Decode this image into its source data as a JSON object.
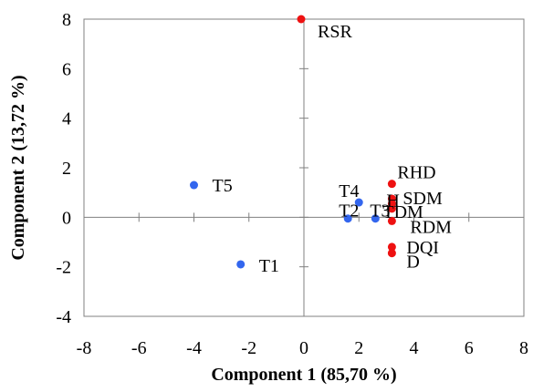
{
  "chart_data": {
    "type": "scatter",
    "xlabel": "Component 1 (85,70 %)",
    "ylabel": "Component  2 (13,72 %)",
    "xlim": [
      -8,
      8
    ],
    "ylim": [
      -4,
      8
    ],
    "xticks": [
      -8,
      -6,
      -4,
      -2,
      0,
      2,
      4,
      6,
      8
    ],
    "yticks": [
      -4,
      -2,
      0,
      2,
      4,
      6,
      8
    ],
    "grid": false,
    "legend": "none",
    "colors": {
      "treatments": "#3366ee",
      "variables": "#ee1111"
    },
    "series": [
      {
        "group": "treatments",
        "points": [
          {
            "label": "T5",
            "x": -4.0,
            "y": 1.3
          },
          {
            "label": "T1",
            "x": -2.3,
            "y": -1.9
          },
          {
            "label": "T4",
            "x": 2.0,
            "y": 0.6
          },
          {
            "label": "T2",
            "x": 1.6,
            "y": -0.05
          },
          {
            "label": "T3",
            "x": 2.6,
            "y": -0.05
          }
        ]
      },
      {
        "group": "variables",
        "points": [
          {
            "label": "RSR",
            "x": -0.1,
            "y": 8.0
          },
          {
            "label": "RHD",
            "x": 3.2,
            "y": 1.35
          },
          {
            "label": "SDM",
            "x": 3.2,
            "y": 0.75
          },
          {
            "label": "H",
            "x": 3.2,
            "y": 0.55
          },
          {
            "label": "TDM",
            "x": 3.2,
            "y": 0.35
          },
          {
            "label": "RDM",
            "x": 3.2,
            "y": -0.15
          },
          {
            "label": "DQI",
            "x": 3.2,
            "y": -1.2
          },
          {
            "label": "D",
            "x": 3.2,
            "y": -1.45
          }
        ]
      }
    ]
  }
}
